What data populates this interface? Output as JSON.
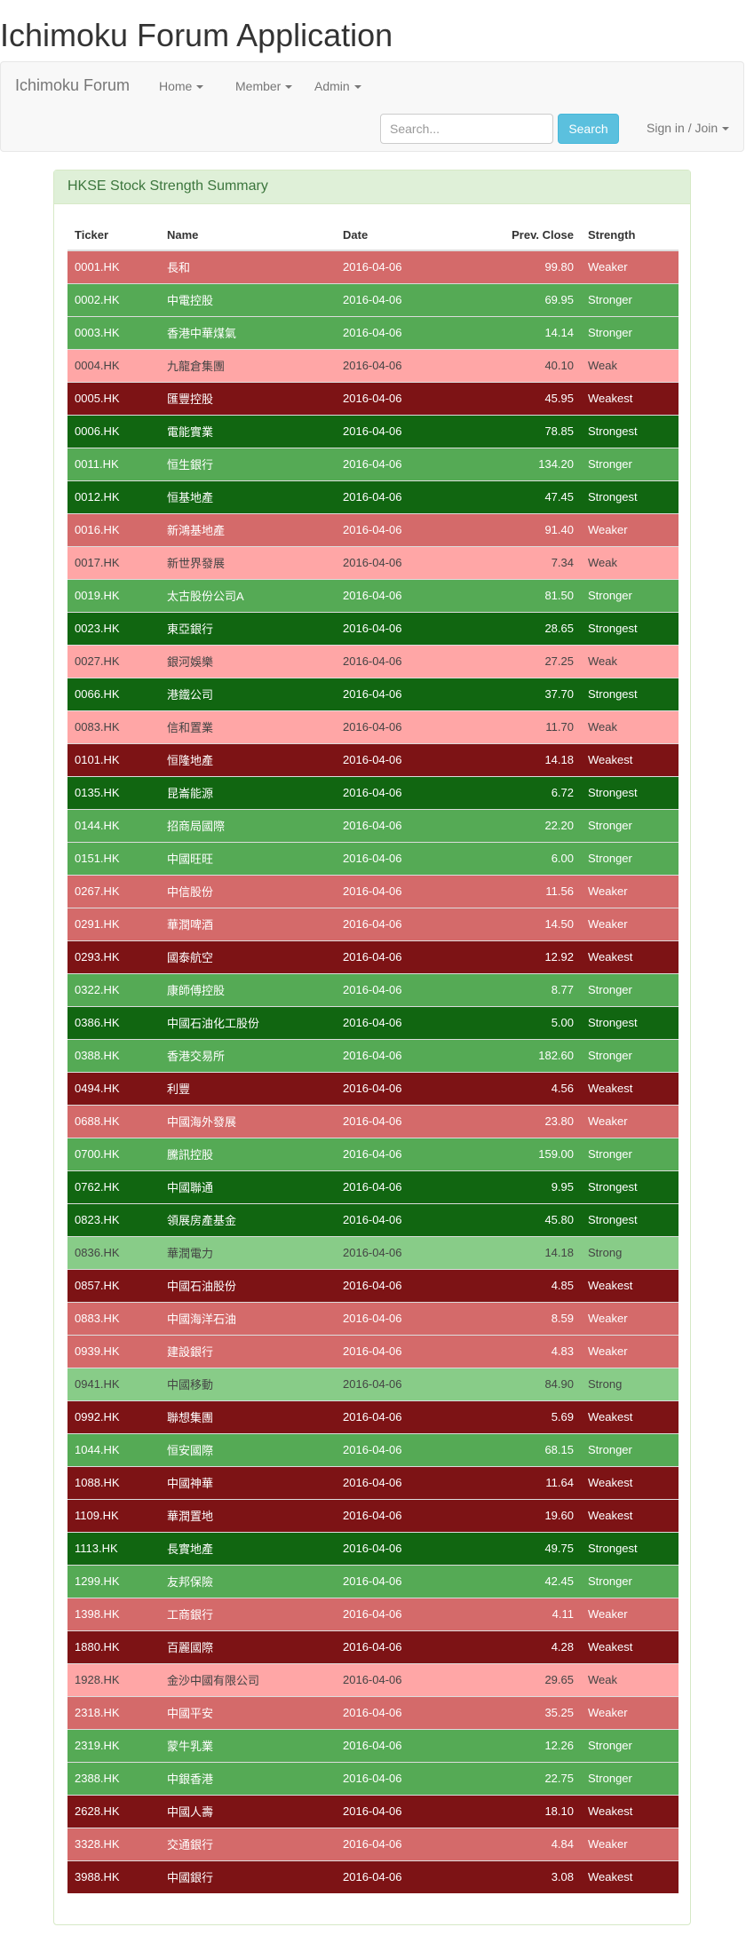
{
  "page_title": "Ichimoku Forum Application",
  "navbar": {
    "brand": "Ichimoku Forum",
    "menus": [
      "Home",
      "Member",
      "Admin"
    ],
    "search_placeholder": "Search...",
    "search_button": "Search",
    "signin": "Sign in / Join"
  },
  "panel": {
    "title": "HKSE Stock Strength Summary",
    "columns": [
      "Ticker",
      "Name",
      "Date",
      "Prev. Close",
      "Strength"
    ],
    "colors": {
      "Weakest": "#7d1315",
      "Weaker": "#d46a6a",
      "Weak": "#ffa6a6",
      "Strong": "#88cc88",
      "Stronger": "#55aa55",
      "Strongest": "#116611"
    },
    "rows": [
      [
        "0001.HK",
        "長和",
        "2016-04-06",
        "99.80",
        "Weaker"
      ],
      [
        "0002.HK",
        "中電控股",
        "2016-04-06",
        "69.95",
        "Stronger"
      ],
      [
        "0003.HK",
        "香港中華煤氣",
        "2016-04-06",
        "14.14",
        "Stronger"
      ],
      [
        "0004.HK",
        "九龍倉集團",
        "2016-04-06",
        "40.10",
        "Weak"
      ],
      [
        "0005.HK",
        "匯豐控股",
        "2016-04-06",
        "45.95",
        "Weakest"
      ],
      [
        "0006.HK",
        "電能實業",
        "2016-04-06",
        "78.85",
        "Strongest"
      ],
      [
        "0011.HK",
        "恒生銀行",
        "2016-04-06",
        "134.20",
        "Stronger"
      ],
      [
        "0012.HK",
        "恒基地產",
        "2016-04-06",
        "47.45",
        "Strongest"
      ],
      [
        "0016.HK",
        "新鴻基地產",
        "2016-04-06",
        "91.40",
        "Weaker"
      ],
      [
        "0017.HK",
        "新世界發展",
        "2016-04-06",
        "7.34",
        "Weak"
      ],
      [
        "0019.HK",
        "太古股份公司A",
        "2016-04-06",
        "81.50",
        "Stronger"
      ],
      [
        "0023.HK",
        "東亞銀行",
        "2016-04-06",
        "28.65",
        "Strongest"
      ],
      [
        "0027.HK",
        "銀河娛樂",
        "2016-04-06",
        "27.25",
        "Weak"
      ],
      [
        "0066.HK",
        "港鐵公司",
        "2016-04-06",
        "37.70",
        "Strongest"
      ],
      [
        "0083.HK",
        "信和置業",
        "2016-04-06",
        "11.70",
        "Weak"
      ],
      [
        "0101.HK",
        "恒隆地產",
        "2016-04-06",
        "14.18",
        "Weakest"
      ],
      [
        "0135.HK",
        "昆崙能源",
        "2016-04-06",
        "6.72",
        "Strongest"
      ],
      [
        "0144.HK",
        "招商局國際",
        "2016-04-06",
        "22.20",
        "Stronger"
      ],
      [
        "0151.HK",
        "中國旺旺",
        "2016-04-06",
        "6.00",
        "Stronger"
      ],
      [
        "0267.HK",
        "中信股份",
        "2016-04-06",
        "11.56",
        "Weaker"
      ],
      [
        "0291.HK",
        "華潤啤酒",
        "2016-04-06",
        "14.50",
        "Weaker"
      ],
      [
        "0293.HK",
        "國泰航空",
        "2016-04-06",
        "12.92",
        "Weakest"
      ],
      [
        "0322.HK",
        "康師傅控股",
        "2016-04-06",
        "8.77",
        "Stronger"
      ],
      [
        "0386.HK",
        "中國石油化工股份",
        "2016-04-06",
        "5.00",
        "Strongest"
      ],
      [
        "0388.HK",
        "香港交易所",
        "2016-04-06",
        "182.60",
        "Stronger"
      ],
      [
        "0494.HK",
        "利豐",
        "2016-04-06",
        "4.56",
        "Weakest"
      ],
      [
        "0688.HK",
        "中國海外發展",
        "2016-04-06",
        "23.80",
        "Weaker"
      ],
      [
        "0700.HK",
        "騰訊控股",
        "2016-04-06",
        "159.00",
        "Stronger"
      ],
      [
        "0762.HK",
        "中國聯通",
        "2016-04-06",
        "9.95",
        "Strongest"
      ],
      [
        "0823.HK",
        "領展房產基金",
        "2016-04-06",
        "45.80",
        "Strongest"
      ],
      [
        "0836.HK",
        "華潤電力",
        "2016-04-06",
        "14.18",
        "Strong"
      ],
      [
        "0857.HK",
        "中國石油股份",
        "2016-04-06",
        "4.85",
        "Weakest"
      ],
      [
        "0883.HK",
        "中國海洋石油",
        "2016-04-06",
        "8.59",
        "Weaker"
      ],
      [
        "0939.HK",
        "建設銀行",
        "2016-04-06",
        "4.83",
        "Weaker"
      ],
      [
        "0941.HK",
        "中國移動",
        "2016-04-06",
        "84.90",
        "Strong"
      ],
      [
        "0992.HK",
        "聯想集團",
        "2016-04-06",
        "5.69",
        "Weakest"
      ],
      [
        "1044.HK",
        "恒安國際",
        "2016-04-06",
        "68.15",
        "Stronger"
      ],
      [
        "1088.HK",
        "中國神華",
        "2016-04-06",
        "11.64",
        "Weakest"
      ],
      [
        "1109.HK",
        "華潤置地",
        "2016-04-06",
        "19.60",
        "Weakest"
      ],
      [
        "1113.HK",
        "長實地產",
        "2016-04-06",
        "49.75",
        "Strongest"
      ],
      [
        "1299.HK",
        "友邦保險",
        "2016-04-06",
        "42.45",
        "Stronger"
      ],
      [
        "1398.HK",
        "工商銀行",
        "2016-04-06",
        "4.11",
        "Weaker"
      ],
      [
        "1880.HK",
        "百麗國際",
        "2016-04-06",
        "4.28",
        "Weakest"
      ],
      [
        "1928.HK",
        "金沙中國有限公司",
        "2016-04-06",
        "29.65",
        "Weak"
      ],
      [
        "2318.HK",
        "中國平安",
        "2016-04-06",
        "35.25",
        "Weaker"
      ],
      [
        "2319.HK",
        "蒙牛乳業",
        "2016-04-06",
        "12.26",
        "Stronger"
      ],
      [
        "2388.HK",
        "中銀香港",
        "2016-04-06",
        "22.75",
        "Stronger"
      ],
      [
        "2628.HK",
        "中國人壽",
        "2016-04-06",
        "18.10",
        "Weakest"
      ],
      [
        "3328.HK",
        "交通銀行",
        "2016-04-06",
        "4.84",
        "Weaker"
      ],
      [
        "3988.HK",
        "中國銀行",
        "2016-04-06",
        "3.08",
        "Weakest"
      ]
    ]
  }
}
